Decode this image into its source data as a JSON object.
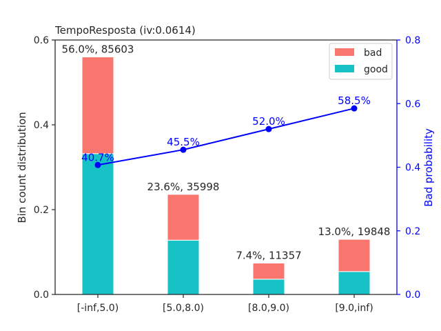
{
  "chart_data": {
    "type": "bar",
    "title": "TempoResposta  (iv:0.0614)",
    "xlabel": "",
    "ylabel": "Bin count distribution",
    "ylabel_right": "Bad probability",
    "categories": [
      "[-inf,5.0)",
      "[5.0,8.0)",
      "[8.0,9.0)",
      "[9.0,inf)"
    ],
    "ylim": [
      0,
      0.6
    ],
    "ylim_right": [
      0,
      0.8
    ],
    "yticks": [
      "0.0",
      "0.2",
      "0.4",
      "0.6"
    ],
    "yticks_right": [
      "0.0",
      "0.2",
      "0.4",
      "0.6",
      "0.8"
    ],
    "series": [
      {
        "name": "good",
        "color": "#17c2c7",
        "values": [
          0.332,
          0.128,
          0.036,
          0.054
        ]
      },
      {
        "name": "bad",
        "color": "#f8766d",
        "values": [
          0.228,
          0.108,
          0.038,
          0.076
        ]
      }
    ],
    "bad_probability": [
      0.407,
      0.455,
      0.52,
      0.585
    ],
    "bar_labels": [
      "56.0%, 85603",
      "23.6%, 35998",
      "7.4%, 11357",
      "13.0%, 19848"
    ],
    "prob_labels": [
      "40.7%",
      "45.5%",
      "52.0%",
      "58.5%"
    ],
    "line_color": "#0000ff",
    "legend_position": "top-right",
    "legend": [
      "bad",
      "good"
    ],
    "grid": false
  }
}
